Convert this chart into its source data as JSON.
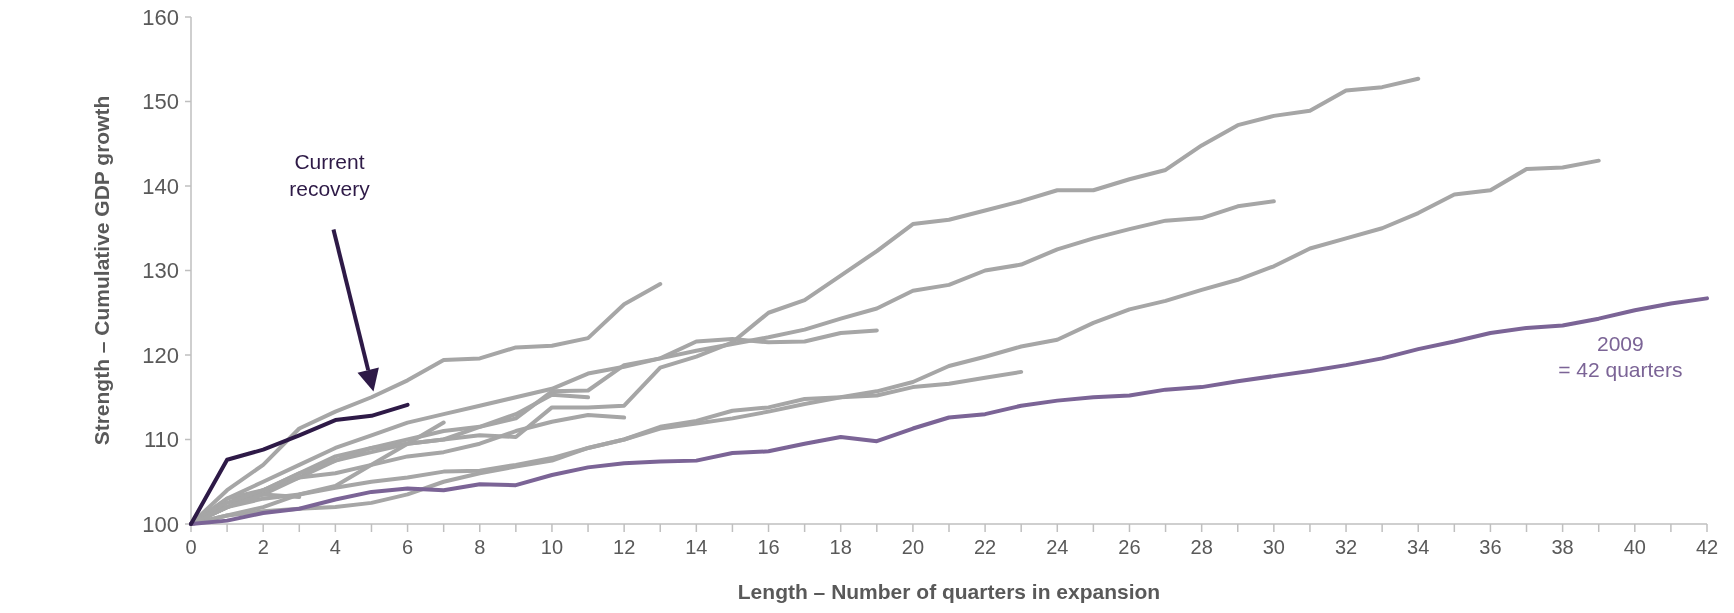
{
  "chart_data": {
    "type": "line",
    "xlabel": "Length – Number of quarters in expansion",
    "ylabel": "Strength – Cumulative GDP growth",
    "xlim": [
      0,
      42
    ],
    "ylim": [
      100,
      160
    ],
    "xticks": [
      0,
      {
        "value": 1,
        "label": null
      },
      2,
      {
        "value": 3,
        "label": null
      },
      4,
      {
        "value": 5,
        "label": null
      },
      6,
      {
        "value": 7,
        "label": null
      },
      8,
      {
        "value": 9,
        "label": null
      },
      10,
      {
        "value": 11,
        "label": null
      },
      12,
      {
        "value": 13,
        "label": null
      },
      14,
      {
        "value": 15,
        "label": null
      },
      16,
      {
        "value": 17,
        "label": null
      },
      18,
      {
        "value": 19,
        "label": null
      },
      20,
      {
        "value": 21,
        "label": null
      },
      22,
      {
        "value": 23,
        "label": null
      },
      24,
      {
        "value": 25,
        "label": null
      },
      26,
      {
        "value": 27,
        "label": null
      },
      28,
      {
        "value": 29,
        "label": null
      },
      30,
      {
        "value": 31,
        "label": null
      },
      32,
      {
        "value": 33,
        "label": null
      },
      34,
      {
        "value": 35,
        "label": null
      },
      36,
      {
        "value": 37,
        "label": null
      },
      38,
      {
        "value": 39,
        "label": null
      },
      40,
      {
        "value": 41,
        "label": null
      },
      42
    ],
    "yticks": [
      100,
      110,
      120,
      130,
      140,
      150,
      160
    ],
    "grid": false,
    "marker": "none",
    "line_style": "solid",
    "series": [
      {
        "color": "#a6a6a6",
        "x": [
          0,
          1,
          2,
          3,
          4,
          5,
          6,
          7,
          8,
          9,
          10,
          11,
          12,
          13
        ],
        "values": [
          100,
          104,
          107,
          111.3,
          113.3,
          115,
          117,
          119.4,
          119.6,
          120.9,
          121.1,
          122,
          126,
          128.4
        ]
      },
      {
        "color": "#a6a6a6",
        "x": [
          0,
          1,
          2,
          3,
          4,
          5,
          6,
          7,
          8,
          9,
          10,
          11,
          12,
          13,
          14,
          15,
          16,
          17,
          18,
          19,
          20,
          21,
          22,
          23,
          24,
          25,
          26,
          27,
          28,
          29,
          30,
          31,
          32,
          33,
          34
        ],
        "values": [
          100,
          102,
          103.5,
          105.5,
          107.5,
          108.5,
          109.5,
          110,
          110.5,
          110.3,
          113.8,
          113.8,
          114,
          118.5,
          119.8,
          121.5,
          125,
          126.5,
          129.4,
          132.3,
          135.5,
          136,
          137.1,
          138.2,
          139.5,
          139.5,
          140.8,
          141.9,
          144.8,
          147.2,
          148.3,
          148.9,
          151.3,
          151.7,
          152.7
        ]
      },
      {
        "color": "#a6a6a6",
        "x": [
          0,
          1,
          2,
          3,
          4,
          5,
          6,
          7,
          8,
          9,
          10,
          11,
          12,
          13,
          14,
          15,
          16,
          17,
          18,
          19,
          20,
          21,
          22,
          23,
          24,
          25,
          26,
          27,
          28,
          29,
          30
        ],
        "values": [
          100,
          103,
          105,
          107,
          109,
          110.5,
          112,
          113,
          114,
          115,
          116,
          117.8,
          118.6,
          119.6,
          120.5,
          121.3,
          122.1,
          123,
          124.3,
          125.5,
          127.6,
          128.3,
          130,
          130.7,
          132.5,
          133.8,
          134.9,
          135.9,
          136.2,
          137.6,
          138.2
        ]
      },
      {
        "color": "#a6a6a6",
        "x": [
          0,
          1,
          2,
          3,
          4,
          5,
          6,
          7,
          8,
          9,
          10,
          11,
          12,
          13,
          14,
          15,
          16,
          17,
          18,
          19,
          20,
          21,
          22,
          23,
          24,
          25,
          26,
          27,
          28,
          29,
          30,
          31,
          32,
          33,
          34,
          35,
          36,
          37,
          38,
          39
        ],
        "values": [
          100,
          101,
          101.5,
          101.8,
          102,
          102.5,
          103.5,
          105,
          106,
          106.8,
          107.5,
          109,
          110,
          111.5,
          112.2,
          113.4,
          113.8,
          114.8,
          115,
          115.7,
          116.8,
          118.7,
          119.8,
          121,
          121.8,
          123.8,
          125.4,
          126.4,
          127.7,
          128.9,
          130.5,
          132.6,
          133.8,
          135,
          136.8,
          139,
          139.5,
          142,
          142.2,
          143
        ]
      },
      {
        "color": "#a6a6a6",
        "x": [
          0,
          1,
          2,
          3,
          4,
          5,
          6,
          7,
          8,
          9,
          10,
          11,
          12,
          13,
          14,
          15,
          16,
          17,
          18,
          19,
          20,
          21,
          22,
          23
        ],
        "values": [
          100,
          102,
          103,
          103.5,
          104.3,
          105,
          105.5,
          106.2,
          106.3,
          107,
          107.8,
          109,
          110,
          111.3,
          111.9,
          112.5,
          113.3,
          114.2,
          115,
          115.2,
          116.2,
          116.6,
          117.3,
          118
        ]
      },
      {
        "color": "#a6a6a6",
        "x": [
          0,
          1,
          2,
          3,
          4,
          5,
          6,
          7,
          8,
          9,
          10,
          11,
          12,
          13,
          14,
          15,
          16,
          17,
          18,
          19
        ],
        "values": [
          100,
          103,
          104,
          106,
          108,
          109,
          110,
          111,
          111.5,
          112.5,
          115.7,
          115.8,
          118.8,
          119.6,
          121.6,
          121.9,
          121.5,
          121.6,
          122.6,
          122.9
        ]
      },
      {
        "color": "#a6a6a6",
        "x": [
          0,
          1,
          2,
          3,
          4,
          5,
          6,
          7,
          8,
          9,
          10,
          11,
          12
        ],
        "values": [
          100,
          102,
          104,
          105.5,
          106,
          107,
          108,
          108.5,
          109.5,
          111,
          112.1,
          112.9,
          112.6
        ]
      },
      {
        "color": "#a6a6a6",
        "x": [
          0,
          1,
          2,
          3,
          4,
          5,
          6,
          7,
          8,
          9,
          10,
          11
        ],
        "values": [
          100,
          102.5,
          104,
          106,
          107.5,
          109,
          109.5,
          110,
          111.5,
          113,
          115.3,
          115
        ]
      },
      {
        "color": "#a6a6a6",
        "x": [
          0,
          1,
          2,
          3,
          4,
          5,
          6,
          7
        ],
        "values": [
          100,
          101,
          102,
          103.5,
          104.5,
          107,
          109.5,
          112
        ]
      },
      {
        "color": "#a6a6a6",
        "x": [
          0,
          1,
          2,
          3
        ],
        "values": [
          100,
          102,
          103.5,
          103.2
        ]
      },
      {
        "color": "#7b6496",
        "x": [
          0,
          1,
          2,
          3,
          4,
          5,
          6,
          7,
          8,
          9,
          10,
          11,
          12,
          13,
          14,
          15,
          16,
          17,
          18,
          19,
          20,
          21,
          22,
          23,
          24,
          25,
          26,
          27,
          28,
          29,
          30,
          31,
          32,
          33,
          34,
          35,
          36,
          37,
          38,
          39,
          40,
          41,
          42
        ],
        "values": [
          100,
          100.4,
          101.3,
          101.8,
          102.9,
          103.8,
          104.2,
          104,
          104.7,
          104.6,
          105.8,
          106.7,
          107.2,
          107.4,
          107.5,
          108.4,
          108.6,
          109.5,
          110.3,
          109.8,
          111.3,
          112.6,
          113,
          114,
          114.6,
          115,
          115.2,
          115.9,
          116.2,
          116.9,
          117.5,
          118.1,
          118.8,
          119.6,
          120.7,
          121.6,
          122.6,
          123.2,
          123.5,
          124.3,
          125.3,
          126.1,
          126.7
        ]
      },
      {
        "color": "#2e1a47",
        "x": [
          0,
          1,
          2,
          3,
          4,
          5,
          6
        ],
        "values": [
          100,
          107.6,
          108.8,
          110.5,
          112.3,
          112.8,
          114.1
        ]
      }
    ],
    "annotations": [
      "Current recovery",
      "2009\n= 42 quarters"
    ]
  }
}
